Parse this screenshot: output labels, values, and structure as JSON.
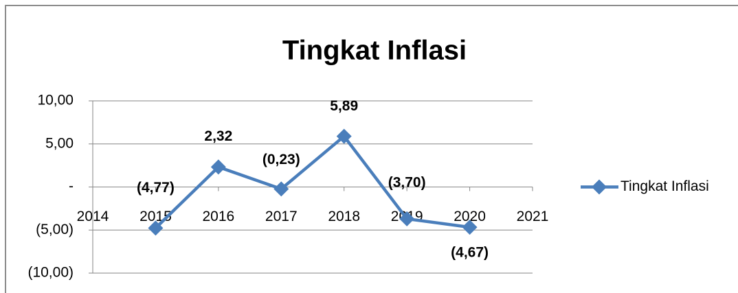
{
  "chart_data": {
    "type": "line",
    "title": "Tingkat Inflasi",
    "x": [
      2015,
      2016,
      2017,
      2018,
      2019,
      2020
    ],
    "series": [
      {
        "name": "Tingkat Inflasi",
        "color": "#4a7ebb",
        "values": [
          -4.77,
          2.32,
          -0.23,
          5.89,
          -3.7,
          -4.67
        ],
        "value_labels": [
          "(4,77)",
          "2,32",
          "(0,23)",
          "5,89",
          "(3,70)",
          "(4,67)"
        ]
      }
    ],
    "xlim": [
      2014,
      2021
    ],
    "xticks": [
      2014,
      2015,
      2016,
      2017,
      2018,
      2019,
      2020,
      2021
    ],
    "ylim": [
      -10,
      10
    ],
    "yticks": [
      {
        "value": -10,
        "label": "(10,00)"
      },
      {
        "value": -5,
        "label": "(5,00)"
      },
      {
        "value": 0,
        "label": "-"
      },
      {
        "value": 5,
        "label": "5,00"
      },
      {
        "value": 10,
        "label": "10,00"
      }
    ],
    "grid": true,
    "legend": "right"
  }
}
